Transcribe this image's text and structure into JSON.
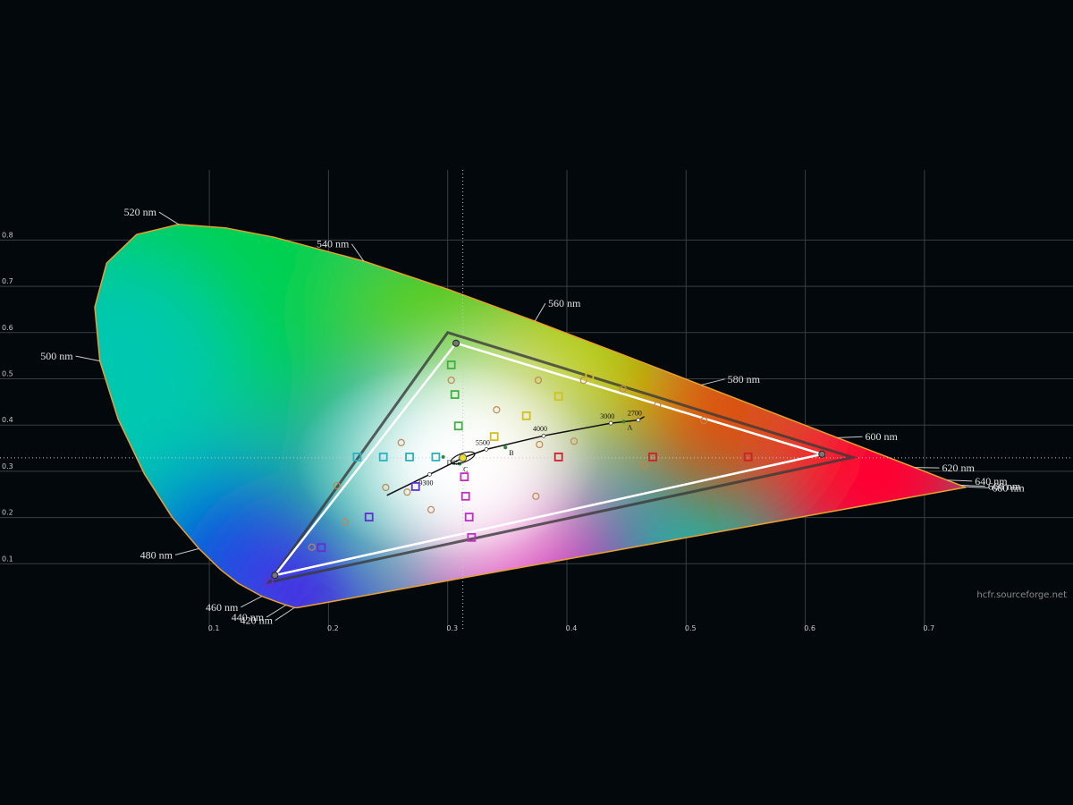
{
  "chart_data": {
    "type": "cie",
    "xlim": [
      0,
      0.8
    ],
    "ylim": [
      0,
      0.9
    ],
    "xticks": [
      0.1,
      0.2,
      0.3,
      0.4,
      0.5,
      0.6,
      0.7
    ],
    "yticks": [
      0.1,
      0.2,
      0.3,
      0.4,
      0.5,
      0.6,
      0.7,
      0.8
    ],
    "grid": true,
    "locus": {
      "color": "#e8a030",
      "x": [
        0.1741,
        0.1714,
        0.1644,
        0.1566,
        0.144,
        0.1241,
        0.1096,
        0.0913,
        0.0687,
        0.0454,
        0.0235,
        0.0082,
        0.0039,
        0.0139,
        0.0389,
        0.0743,
        0.1142,
        0.1547,
        0.2296,
        0.3016,
        0.3731,
        0.4441,
        0.5125,
        0.5752,
        0.627,
        0.6915,
        0.719,
        0.73,
        0.7334,
        0.7347
      ],
      "y": [
        0.005,
        0.0051,
        0.0109,
        0.0177,
        0.0297,
        0.0578,
        0.0868,
        0.1327,
        0.2007,
        0.295,
        0.4127,
        0.5384,
        0.6548,
        0.7502,
        0.812,
        0.8338,
        0.8262,
        0.8059,
        0.7543,
        0.6923,
        0.6245,
        0.5547,
        0.4866,
        0.4242,
        0.3725,
        0.3083,
        0.2809,
        0.27,
        0.2666,
        0.2653
      ],
      "labels": [
        null,
        "420 nm",
        "440 nm",
        null,
        "460 nm",
        null,
        null,
        "480 nm",
        null,
        null,
        null,
        "500 nm",
        null,
        null,
        null,
        "520 nm",
        null,
        null,
        "540 nm",
        null,
        "560 nm",
        null,
        "580 nm",
        null,
        "600 nm",
        "620 nm",
        "640 nm",
        "660 nm",
        "680 nm",
        null
      ]
    },
    "reference_gamut": {
      "color": "#3a3a3a",
      "x": [
        0.64,
        0.3,
        0.15
      ],
      "y": [
        0.33,
        0.6,
        0.06
      ]
    },
    "measured_gamut": {
      "color": "#ffffff",
      "x": [
        0.614,
        0.307,
        0.155
      ],
      "y": [
        0.337,
        0.577,
        0.075
      ]
    },
    "white_point": {
      "x": 0.3127,
      "y": 0.329
    },
    "blackbody": {
      "x": [
        0.249,
        0.2848,
        0.3127,
        0.3324,
        0.3805,
        0.4369,
        0.4599,
        0.465
      ],
      "y": [
        0.248,
        0.2932,
        0.329,
        0.3474,
        0.3768,
        0.4041,
        0.4106,
        0.418
      ],
      "labels": [
        null,
        "9300",
        null,
        "5500",
        "4000",
        "3000",
        "2700",
        null
      ]
    },
    "illuminants": {
      "x": [
        0.4476,
        0.3484,
        0.3101,
        0.2962
      ],
      "y": [
        0.4074,
        0.3516,
        0.3162,
        0.331
      ],
      "labels": [
        "A",
        "B",
        "C",
        "D65"
      ]
    },
    "targets": {
      "x": [
        0.303,
        0.306,
        0.309,
        0.419,
        0.393,
        0.366,
        0.339,
        0.224,
        0.246,
        0.268,
        0.29,
        0.552,
        0.472,
        0.393,
        0.15,
        0.194,
        0.234,
        0.273,
        0.32,
        0.318,
        0.315,
        0.314
      ],
      "y": [
        0.53,
        0.466,
        0.398,
        0.507,
        0.462,
        0.42,
        0.375,
        0.331,
        0.331,
        0.331,
        0.331,
        0.331,
        0.331,
        0.331,
        0.06,
        0.135,
        0.201,
        0.267,
        0.157,
        0.201,
        0.246,
        0.288
      ],
      "colors": [
        "#40b040",
        "#40b040",
        "#40b040",
        "#d0c020",
        "#d0c020",
        "#d0c020",
        "#d0c020",
        "#30b0c0",
        "#30b0c0",
        "#30b0c0",
        "#30b0c0",
        "#d02030",
        "#d02030",
        "#d02030",
        "#6030d0",
        "#6030d0",
        "#6030d0",
        "#6030d0",
        "#c030c0",
        "#c030c0",
        "#c030c0",
        "#c030c0"
      ]
    },
    "measurements": {
      "color": "#c08850",
      "x": [
        0.261,
        0.248,
        0.266,
        0.286,
        0.303,
        0.376,
        0.341,
        0.377,
        0.406,
        0.374,
        0.465,
        0.515,
        0.476,
        0.447,
        0.414,
        0.207,
        0.214,
        0.186
      ],
      "y": [
        0.362,
        0.265,
        0.255,
        0.217,
        0.497,
        0.497,
        0.433,
        0.358,
        0.365,
        0.246,
        0.313,
        0.41,
        0.443,
        0.478,
        0.497,
        0.269,
        0.19,
        0.136
      ]
    },
    "source": "hcfr.sourceforge.net"
  }
}
